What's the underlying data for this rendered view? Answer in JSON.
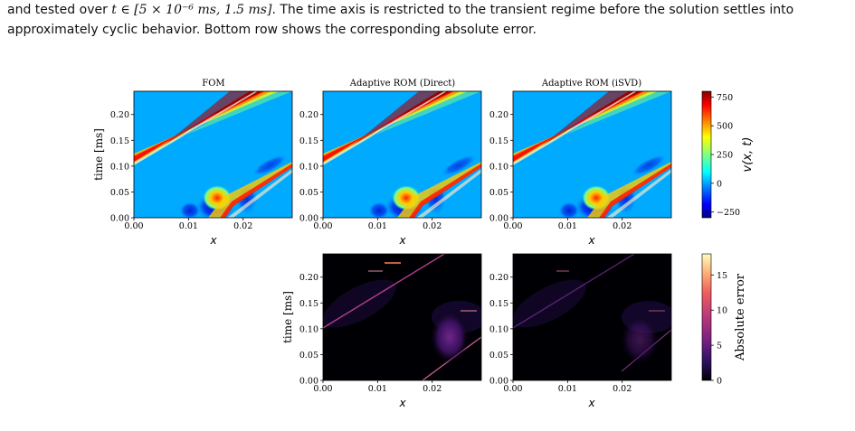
{
  "caption": {
    "line1_pre": "and tested over ",
    "line1_math": "t ∈ [5 × 10⁻⁶ ms, 1.5 ms]",
    "line1_post": ". The time axis is restricted to the transient regime before the solution settles into",
    "line2": "approximately cyclic behavior. Bottom row shows the corresponding absolute error."
  },
  "figure": {
    "panels": {
      "fom": {
        "title": "FOM"
      },
      "direct": {
        "title": "Adaptive ROM (Direct)"
      },
      "isvd": {
        "title": "Adaptive ROM (iSVD)"
      }
    },
    "x_label": "x",
    "y_label": "time [ms]",
    "x_ticks": [
      "0.00",
      "0.01",
      "0.02"
    ],
    "y_ticks": [
      "0.00",
      "0.05",
      "0.10",
      "0.15",
      "0.20"
    ],
    "colorbar_top": {
      "label": "v(x, t)",
      "ticks": [
        "750",
        "500",
        "250",
        "0",
        "−250"
      ],
      "colormap": "jet"
    },
    "colorbar_bottom": {
      "label": "Absolute error",
      "ticks": [
        "15",
        "10",
        "5",
        "0"
      ],
      "colormap": "magma"
    }
  },
  "chart_data": [
    {
      "type": "heatmap",
      "title": "FOM",
      "xlabel": "x",
      "ylabel": "time [ms]",
      "xlim": [
        0.0,
        0.029
      ],
      "ylim": [
        0.0,
        0.245
      ],
      "colorbar": "v(x, t)",
      "clim": [
        -300,
        800
      ]
    },
    {
      "type": "heatmap",
      "title": "Adaptive ROM (Direct)",
      "xlabel": "x",
      "ylabel": "",
      "xlim": [
        0.0,
        0.029
      ],
      "ylim": [
        0.0,
        0.245
      ],
      "colorbar": "v(x, t)",
      "clim": [
        -300,
        800
      ]
    },
    {
      "type": "heatmap",
      "title": "Adaptive ROM (iSVD)",
      "xlabel": "x",
      "ylabel": "",
      "xlim": [
        0.0,
        0.029
      ],
      "ylim": [
        0.0,
        0.245
      ],
      "colorbar": "v(x, t)",
      "clim": [
        -300,
        800
      ]
    },
    {
      "type": "heatmap",
      "title": "",
      "xlabel": "x",
      "ylabel": "time [ms]",
      "xlim": [
        0.0,
        0.029
      ],
      "ylim": [
        0.0,
        0.245
      ],
      "colorbar": "Absolute error",
      "clim": [
        0,
        18
      ]
    },
    {
      "type": "heatmap",
      "title": "",
      "xlabel": "x",
      "ylabel": "",
      "xlim": [
        0.0,
        0.029
      ],
      "ylim": [
        0.0,
        0.245
      ],
      "colorbar": "Absolute error",
      "clim": [
        0,
        18
      ]
    }
  ]
}
